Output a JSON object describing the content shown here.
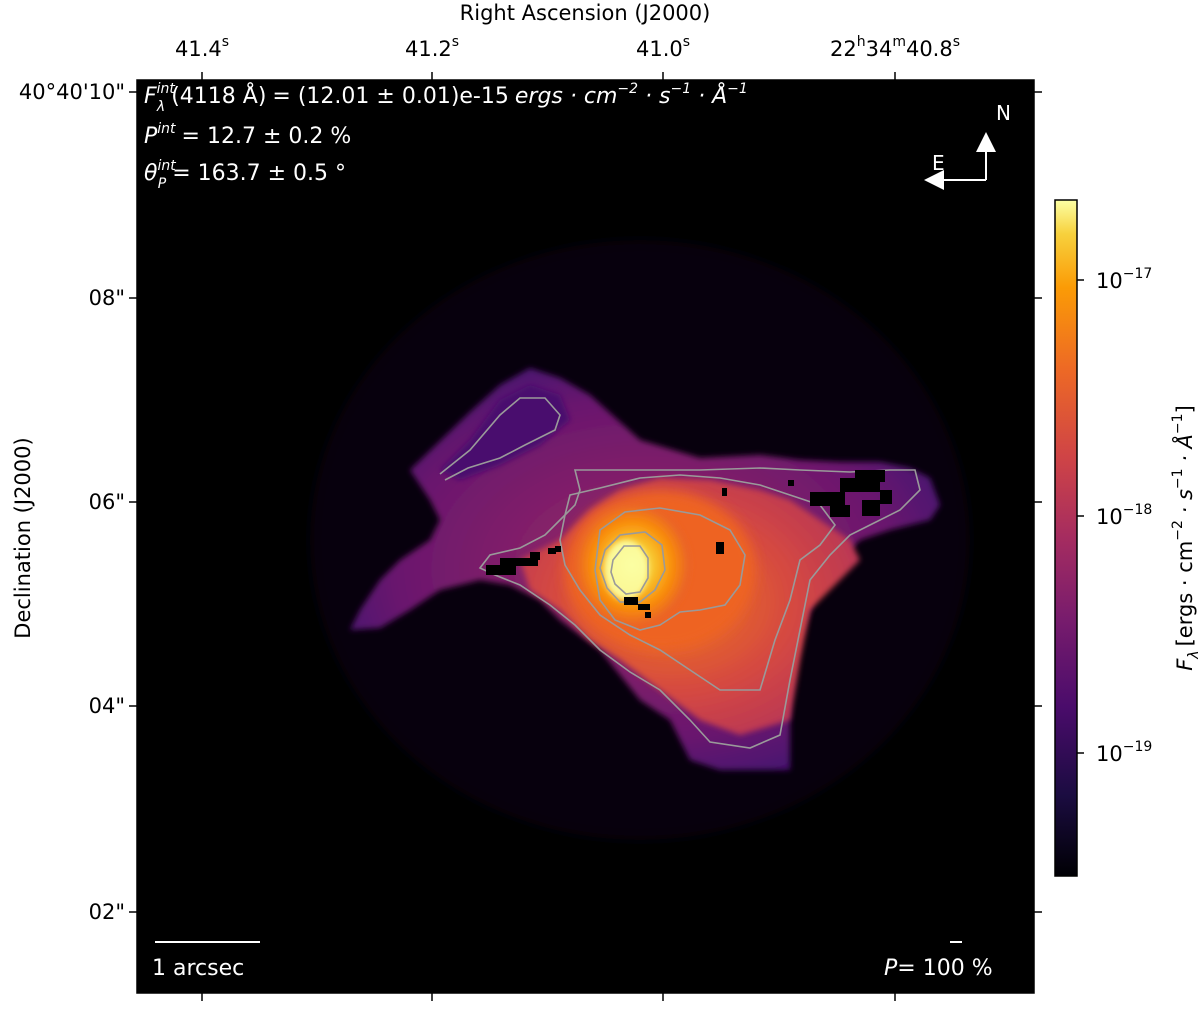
{
  "figure": {
    "x_axis_label": "Right Ascension (J2000)",
    "y_axis_label": "Declination (J2000)",
    "top_ticks": [
      {
        "main": "41.4",
        "sup": "s"
      },
      {
        "main": "41.2",
        "sup": "s"
      },
      {
        "main": "41.0",
        "sup": "s"
      },
      {
        "main": "22",
        "sup1": "h",
        "mid": "34",
        "sup2": "m",
        "end": "40.8",
        "sup3": "s"
      }
    ],
    "left_ticks": [
      "40°40'10\"",
      "08\"",
      "06\"",
      "04\"",
      "02\""
    ],
    "annotation": {
      "flux_symbol": "F",
      "flux_sup": "int",
      "flux_sub": "λ",
      "flux_wavelength": "(4118 Å)",
      "flux_value": "= (12.01 ± 0.01)e-15",
      "flux_units": "ergs · cm",
      "flux_units_sup1": "−2",
      "flux_units_mid": " · s",
      "flux_units_sup2": "−1",
      "flux_units_end": " · Å",
      "flux_units_sup3": "−1",
      "p_symbol": "P",
      "p_sup": "int",
      "p_value": "= 12.7 ± 0.2 %",
      "theta_symbol": "θ",
      "theta_sup": "int",
      "theta_sub": "P",
      "theta_value": "= 163.7 ± 0.5 °"
    },
    "compass": {
      "north": "N",
      "east": "E"
    },
    "scale_bar_label": "1 arcsec",
    "pol_scale": {
      "symbol": "P",
      "value": "= 100 %"
    },
    "colorbar": {
      "label_symbol": "F",
      "label_sub": "λ",
      "label_units": "[ergs · cm",
      "label_sup1": "−2",
      "label_mid": " · s",
      "label_sup2": "−1",
      "label_mid2": " · Å",
      "label_sup3": "−1",
      "label_end": "]",
      "ticks": [
        {
          "base": "10",
          "exp": "−17"
        },
        {
          "base": "10",
          "exp": "−18"
        },
        {
          "base": "10",
          "exp": "−19"
        }
      ],
      "colormap": "inferno",
      "scale": "log"
    },
    "colors": {
      "background": "#000000",
      "contour": "#9a9a9a",
      "frame": "#000000"
    }
  }
}
